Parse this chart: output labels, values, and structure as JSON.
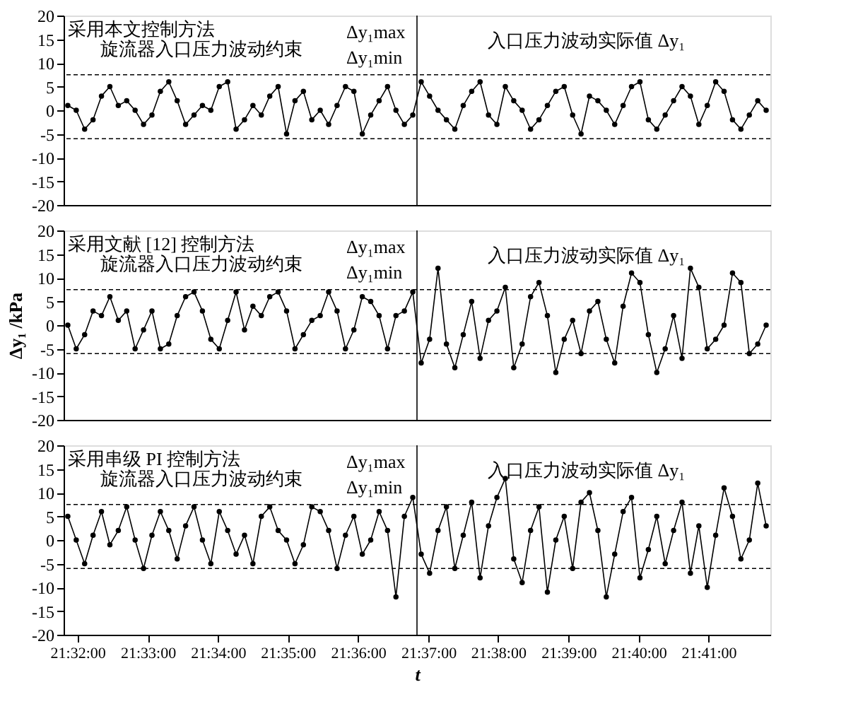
{
  "chart_data": [
    {
      "type": "line",
      "title": "采用本文控制方法",
      "annotations": [
        "旋流器入口压力波动约束",
        "Δy₁max",
        "Δy₁min",
        "入口压力波动实际值 Δy₁"
      ],
      "x": [
        21.531,
        21.533,
        21.535,
        21.537,
        21.539,
        21.541,
        21.543,
        21.545,
        21.547,
        21.549,
        21.551,
        21.553,
        21.555,
        21.557,
        21.559,
        21.561,
        21.563,
        21.565,
        21.567,
        21.569,
        21.571,
        21.573,
        21.575,
        21.577,
        21.579,
        21.581,
        21.583,
        21.585,
        21.587,
        21.589,
        21.591,
        21.593,
        21.595,
        21.597,
        21.599,
        21.601,
        21.603,
        21.605,
        21.607,
        21.609,
        21.611,
        21.613,
        21.615,
        21.617,
        21.619,
        21.621,
        21.623,
        21.625,
        21.627,
        21.629,
        21.631,
        21.633,
        21.635,
        21.637,
        21.639,
        21.641,
        21.643,
        21.645,
        21.647,
        21.649,
        21.651,
        21.653,
        21.655,
        21.657,
        21.659,
        21.661,
        21.663,
        21.665,
        21.667,
        21.669,
        21.671,
        21.673,
        21.675,
        21.677,
        21.679,
        21.681,
        21.683,
        21.685,
        21.687,
        21.689,
        21.691,
        21.693,
        21.695,
        21.697
      ],
      "series": [
        {
          "color": "#000000",
          "values": [
            1,
            0,
            -4,
            -2,
            3,
            5,
            1,
            2,
            0,
            -3,
            -1,
            4,
            6,
            2,
            -3,
            -1,
            1,
            0,
            5,
            6,
            -4,
            -2,
            1,
            -1,
            3,
            5,
            -5,
            2,
            4,
            -2,
            0,
            -3,
            1,
            5,
            4,
            -5,
            -1,
            2,
            5,
            0,
            -3,
            -1,
            6,
            3,
            0,
            -2,
            -4,
            1,
            4,
            6,
            -1,
            -3,
            5,
            2,
            0,
            -4,
            -2,
            1,
            4,
            5,
            -1,
            -5,
            3,
            2,
            0,
            -3,
            1,
            5,
            6,
            -2,
            -4,
            -1,
            2,
            5,
            3,
            -3,
            1,
            6,
            4,
            -2,
            -4,
            -1,
            2,
            0
          ]
        }
      ],
      "marker": "circle",
      "line_style": "solid",
      "grid": false,
      "tick_labels": "y",
      "xlim": [
        21.53,
        21.698
      ],
      "ylim": [
        -20,
        20
      ],
      "yticks": [
        -20,
        -15,
        -10,
        -5,
        0,
        5,
        10,
        15,
        20
      ],
      "ref_lines": [
        {
          "axis": "y",
          "value": 7.5,
          "line_style": "dashed"
        },
        {
          "axis": "y",
          "value": -6,
          "line_style": "dashed"
        },
        {
          "axis": "x",
          "value": 21.614,
          "line_style": "solid"
        }
      ]
    },
    {
      "type": "line",
      "title": "采用文献 [12] 控制方法",
      "ylabel": "Δy₁ /kPa",
      "annotations": [
        "旋流器入口压力波动约束",
        "Δy₁max",
        "Δy₁min",
        "入口压力波动实际值 Δy₁"
      ],
      "x": [
        21.531,
        21.533,
        21.535,
        21.537,
        21.539,
        21.541,
        21.543,
        21.545,
        21.547,
        21.549,
        21.551,
        21.553,
        21.555,
        21.557,
        21.559,
        21.561,
        21.563,
        21.565,
        21.567,
        21.569,
        21.571,
        21.573,
        21.575,
        21.577,
        21.579,
        21.581,
        21.583,
        21.585,
        21.587,
        21.589,
        21.591,
        21.593,
        21.595,
        21.597,
        21.599,
        21.601,
        21.603,
        21.605,
        21.607,
        21.609,
        21.611,
        21.613,
        21.615,
        21.617,
        21.619,
        21.621,
        21.623,
        21.625,
        21.627,
        21.629,
        21.631,
        21.633,
        21.635,
        21.637,
        21.639,
        21.641,
        21.643,
        21.645,
        21.647,
        21.649,
        21.651,
        21.653,
        21.655,
        21.657,
        21.659,
        21.661,
        21.663,
        21.665,
        21.667,
        21.669,
        21.671,
        21.673,
        21.675,
        21.677,
        21.679,
        21.681,
        21.683,
        21.685,
        21.687,
        21.689,
        21.691,
        21.693,
        21.695,
        21.697
      ],
      "series": [
        {
          "color": "#000000",
          "values": [
            0,
            -5,
            -2,
            3,
            2,
            6,
            1,
            3,
            -5,
            -1,
            3,
            -5,
            -4,
            2,
            6,
            7,
            3,
            -3,
            -5,
            1,
            7,
            -1,
            4,
            2,
            6,
            7,
            3,
            -5,
            -2,
            1,
            2,
            7,
            3,
            -5,
            -1,
            6,
            5,
            2,
            -5,
            2,
            3,
            7,
            -8,
            -3,
            12,
            -4,
            -9,
            -2,
            5,
            -7,
            1,
            3,
            8,
            -9,
            -4,
            6,
            9,
            2,
            -10,
            -3,
            1,
            -6,
            3,
            5,
            -3,
            -8,
            4,
            11,
            9,
            -2,
            -10,
            -5,
            2,
            -7,
            12,
            8,
            -5,
            -3,
            0,
            11,
            9,
            -6,
            -4,
            0
          ]
        }
      ],
      "marker": "circle",
      "line_style": "solid",
      "grid": false,
      "tick_labels": "y",
      "xlim": [
        21.53,
        21.698
      ],
      "ylim": [
        -20,
        20
      ],
      "yticks": [
        -20,
        -15,
        -10,
        -5,
        0,
        5,
        10,
        15,
        20
      ],
      "ref_lines": [
        {
          "axis": "y",
          "value": 7.5,
          "line_style": "dashed"
        },
        {
          "axis": "y",
          "value": -6,
          "line_style": "dashed"
        },
        {
          "axis": "x",
          "value": 21.614,
          "line_style": "solid"
        }
      ]
    },
    {
      "type": "line",
      "title": "采用串级 PI 控制方法",
      "xlabel": "t",
      "annotations": [
        "旋流器入口压力波动约束",
        "Δy₁max",
        "Δy₁min",
        "入口压力波动实际值 Δy₁"
      ],
      "x": [
        21.531,
        21.533,
        21.535,
        21.537,
        21.539,
        21.541,
        21.543,
        21.545,
        21.547,
        21.549,
        21.551,
        21.553,
        21.555,
        21.557,
        21.559,
        21.561,
        21.563,
        21.565,
        21.567,
        21.569,
        21.571,
        21.573,
        21.575,
        21.577,
        21.579,
        21.581,
        21.583,
        21.585,
        21.587,
        21.589,
        21.591,
        21.593,
        21.595,
        21.597,
        21.599,
        21.601,
        21.603,
        21.605,
        21.607,
        21.609,
        21.611,
        21.613,
        21.615,
        21.617,
        21.619,
        21.621,
        21.623,
        21.625,
        21.627,
        21.629,
        21.631,
        21.633,
        21.635,
        21.637,
        21.639,
        21.641,
        21.643,
        21.645,
        21.647,
        21.649,
        21.651,
        21.653,
        21.655,
        21.657,
        21.659,
        21.661,
        21.663,
        21.665,
        21.667,
        21.669,
        21.671,
        21.673,
        21.675,
        21.677,
        21.679,
        21.681,
        21.683,
        21.685,
        21.687,
        21.689,
        21.691,
        21.693,
        21.695,
        21.697
      ],
      "series": [
        {
          "color": "#000000",
          "values": [
            5,
            0,
            -5,
            1,
            6,
            -1,
            2,
            7,
            0,
            -6,
            1,
            6,
            2,
            -4,
            3,
            7,
            0,
            -5,
            6,
            2,
            -3,
            1,
            -5,
            5,
            7,
            2,
            0,
            -5,
            -1,
            7,
            6,
            2,
            -6,
            1,
            5,
            -3,
            0,
            6,
            2,
            -12,
            5,
            9,
            -3,
            -7,
            2,
            7,
            -6,
            1,
            8,
            -8,
            3,
            9,
            13,
            -4,
            -9,
            2,
            7,
            -11,
            0,
            5,
            -6,
            8,
            10,
            2,
            -12,
            -3,
            6,
            9,
            -8,
            -2,
            5,
            -5,
            2,
            8,
            -7,
            3,
            -10,
            1,
            11,
            5,
            -4,
            0,
            12,
            3
          ]
        }
      ],
      "marker": "circle",
      "line_style": "solid",
      "grid": false,
      "xlim": [
        21.53,
        21.698
      ],
      "ylim": [
        -20,
        20
      ],
      "yticks": [
        -20,
        -15,
        -10,
        -5,
        0,
        5,
        10,
        15,
        20
      ],
      "xticks": [
        {
          "value": 21.5333,
          "label": "21:32:00"
        },
        {
          "value": 21.55,
          "label": "21:33:00"
        },
        {
          "value": 21.5667,
          "label": "21:34:00"
        },
        {
          "value": 21.5833,
          "label": "21:35:00"
        },
        {
          "value": 21.6,
          "label": "21:36:00"
        },
        {
          "value": 21.6167,
          "label": "21:37:00"
        },
        {
          "value": 21.6333,
          "label": "21:38:00"
        },
        {
          "value": 21.65,
          "label": "21:39:00"
        },
        {
          "value": 21.6667,
          "label": "21:40:00"
        },
        {
          "value": 21.6833,
          "label": "21:41:00"
        }
      ],
      "ref_lines": [
        {
          "axis": "y",
          "value": 7.5,
          "line_style": "dashed"
        },
        {
          "axis": "y",
          "value": -6,
          "line_style": "dashed"
        },
        {
          "axis": "x",
          "value": 21.614,
          "line_style": "solid"
        }
      ]
    }
  ]
}
